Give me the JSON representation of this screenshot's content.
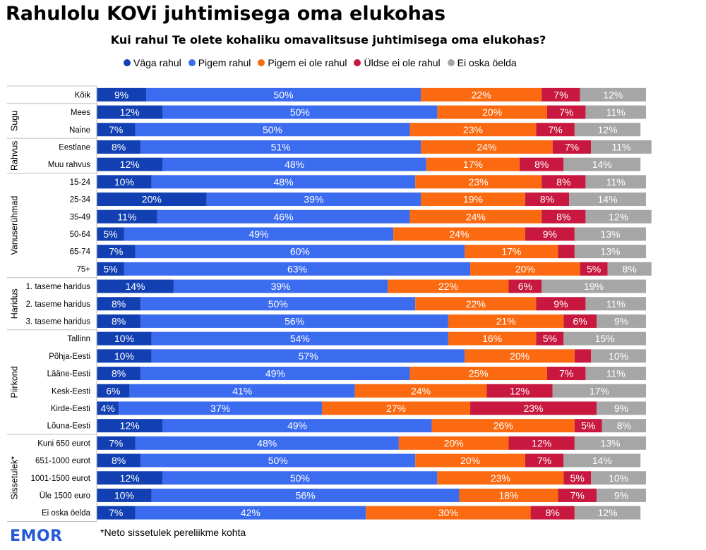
{
  "title": "Rahulolu KOVi juhtimisega oma elukohas",
  "brand": "EMOR",
  "footnote": "*Neto sissetulek pereliikme kohta",
  "colors": {
    "vaga_rahul": "#1240b3",
    "pigem_rahul": "#3b6cf0",
    "pigem_ei_ole": "#fb6a10",
    "uldse_ei_ole": "#c8183f",
    "ei_oska": "#a6a6a6",
    "grid": "#bfbfbf"
  },
  "chart_data": {
    "type": "bar",
    "orientation": "horizontal",
    "stacked": true,
    "percent": true,
    "title": "Kui rahul Te olete kohaliku omavalitsuse juhtimisega oma elukohas?",
    "xlim": [
      0,
      100
    ],
    "legend_position": "top",
    "series": [
      {
        "name": "Väga rahul",
        "color_key": "vaga_rahul"
      },
      {
        "name": "Pigem rahul",
        "color_key": "pigem_rahul"
      },
      {
        "name": "Pigem ei ole rahul",
        "color_key": "pigem_ei_ole"
      },
      {
        "name": "Üldse ei ole rahul",
        "color_key": "uldse_ei_ole"
      },
      {
        "name": "Ei oska öelda",
        "color_key": "ei_oska"
      }
    ],
    "groups": [
      {
        "name": "",
        "rows": [
          {
            "label": "Kõik",
            "values": [
              9,
              50,
              22,
              7,
              12
            ]
          }
        ]
      },
      {
        "name": "Sugu",
        "rows": [
          {
            "label": "Mees",
            "values": [
              12,
              50,
              20,
              7,
              11
            ]
          },
          {
            "label": "Naine",
            "values": [
              7,
              50,
              23,
              7,
              12
            ]
          }
        ]
      },
      {
        "name": "Rahvus",
        "rows": [
          {
            "label": "Eestlane",
            "values": [
              8,
              51,
              24,
              7,
              11
            ]
          },
          {
            "label": "Muu rahvus",
            "values": [
              12,
              48,
              17,
              8,
              14
            ]
          }
        ]
      },
      {
        "name": "Vanuserühmad",
        "rows": [
          {
            "label": "15-24",
            "values": [
              10,
              48,
              23,
              8,
              11
            ]
          },
          {
            "label": "25-34",
            "values": [
              20,
              39,
              19,
              8,
              14
            ]
          },
          {
            "label": "35-49",
            "values": [
              11,
              46,
              24,
              8,
              12
            ]
          },
          {
            "label": "50-64",
            "values": [
              5,
              49,
              24,
              9,
              13
            ]
          },
          {
            "label": "65-74",
            "values": [
              7,
              60,
              17,
              3,
              13
            ],
            "hidden_labels": [
              3
            ]
          },
          {
            "label": "75+",
            "values": [
              5,
              63,
              20,
              5,
              8
            ]
          }
        ]
      },
      {
        "name": "Haridus",
        "rows": [
          {
            "label": "1. taseme haridus",
            "values": [
              14,
              39,
              22,
              6,
              19
            ]
          },
          {
            "label": "2. taseme haridus",
            "values": [
              8,
              50,
              22,
              9,
              11
            ]
          },
          {
            "label": "3. taseme haridus",
            "values": [
              8,
              56,
              21,
              6,
              9
            ]
          }
        ]
      },
      {
        "name": "Piirkond",
        "rows": [
          {
            "label": "Tallinn",
            "values": [
              10,
              54,
              16,
              5,
              15
            ]
          },
          {
            "label": "Põhja-Eesti",
            "values": [
              10,
              57,
              20,
              3,
              10
            ],
            "hidden_labels": [
              3
            ]
          },
          {
            "label": "Lääne-Eesti",
            "values": [
              8,
              49,
              25,
              7,
              11
            ]
          },
          {
            "label": "Kesk-Eesti",
            "values": [
              6,
              41,
              24,
              12,
              17
            ]
          },
          {
            "label": "Kirde-Eesti",
            "values": [
              4,
              37,
              27,
              23,
              9
            ]
          },
          {
            "label": "Lõuna-Eesti",
            "values": [
              12,
              49,
              26,
              5,
              8
            ]
          }
        ]
      },
      {
        "name": "Sissetulek*",
        "rows": [
          {
            "label": "Kuni 650 eurot",
            "values": [
              7,
              48,
              20,
              12,
              13
            ]
          },
          {
            "label": "651-1000 eurot",
            "values": [
              8,
              50,
              20,
              7,
              14
            ]
          },
          {
            "label": "1001-1500 eurot",
            "values": [
              12,
              50,
              23,
              5,
              10
            ]
          },
          {
            "label": "Üle 1500 euro",
            "values": [
              10,
              56,
              18,
              7,
              9
            ]
          },
          {
            "label": "Ei oska öelda",
            "values": [
              7,
              42,
              30,
              8,
              12
            ]
          }
        ]
      }
    ]
  }
}
